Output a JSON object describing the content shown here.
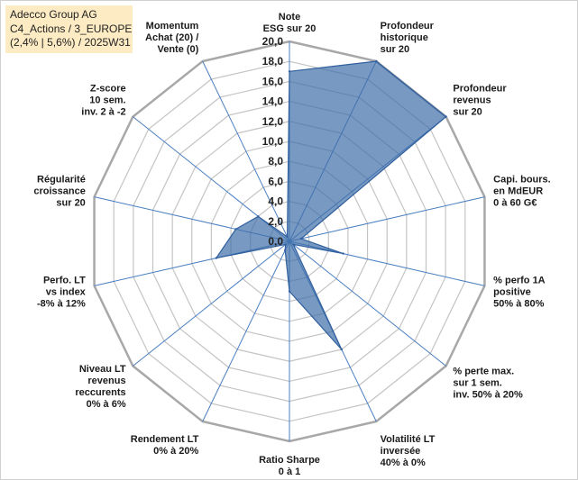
{
  "header": {
    "company": "Adecco Group AG",
    "portfolio": "C4_Actions / 3_EUROPE",
    "params": "(2,4% | 5,6%) / 2025W31"
  },
  "chart_data": {
    "type": "radar",
    "rmin": 0,
    "rmax": 20,
    "tick_step": 2,
    "tick_labels": [
      "0,0",
      "2,0",
      "4,0",
      "6,0",
      "8,0",
      "10,0",
      "12,0",
      "14,0",
      "16,0",
      "18,0",
      "20,0"
    ],
    "axes": [
      {
        "label": [
          "Note",
          "ESG sur 20"
        ],
        "value": 17
      },
      {
        "label": [
          "Profondeur",
          "historique",
          "sur 20"
        ],
        "value": 20
      },
      {
        "label": [
          "Profondeur",
          "revenus",
          "sur 20"
        ],
        "value": 20
      },
      {
        "label": [
          "Capi. bours.",
          "en MdEUR",
          "0 à 60 G€"
        ],
        "value": 1.2
      },
      {
        "label": [
          "% perfo 1A",
          "positive",
          "50% à 80%"
        ],
        "value": 5.5
      },
      {
        "label": [
          "% perte max.",
          "sur 1 sem.",
          "inv. 50% à 20%"
        ],
        "value": 0.5
      },
      {
        "label": [
          "Volatilité LT",
          "inversée",
          "40% à 0%"
        ],
        "value": 12
      },
      {
        "label": [
          "Ratio Sharpe",
          "0 à 1"
        ],
        "value": 5
      },
      {
        "label": [
          "Rendement LT",
          "0% à 20%"
        ],
        "value": 1
      },
      {
        "label": [
          "Niveau LT",
          "revenus",
          "reccurents",
          "0% à 6%"
        ],
        "value": 0.5
      },
      {
        "label": [
          "Perfo. LT",
          "vs index",
          "-8% à 12%"
        ],
        "value": 7.5
      },
      {
        "label": [
          "Régularité",
          "croissance",
          "sur 20"
        ],
        "value": 5.5
      },
      {
        "label": [
          "Z-score",
          "10 sem.",
          "inv. 2 à -2"
        ],
        "value": 4
      },
      {
        "label": [
          "Momentum",
          "Achat (20) /",
          "Vente (0)"
        ],
        "value": 0.5
      }
    ],
    "colors": {
      "fill": "#3f6ea8",
      "stroke": "#2f5f9e",
      "spoke": "#4a7fc1",
      "grid": "#c4c4c4",
      "outer": "#a8a8a8"
    }
  }
}
